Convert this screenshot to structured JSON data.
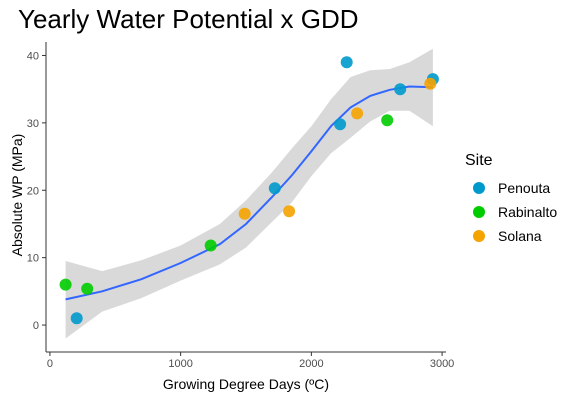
{
  "chart_data": {
    "type": "scatter",
    "title": "Yearly Water Potential x GDD",
    "xlabel": "Growing Degree Days (ºC)",
    "ylabel": "Absolute WP (MPa)",
    "xlim": [
      -30,
      3030
    ],
    "ylim": [
      -4,
      42
    ],
    "x_ticks": [
      0,
      1000,
      2000,
      3000
    ],
    "y_ticks": [
      0,
      10,
      20,
      30,
      40
    ],
    "grid": false,
    "legend": {
      "title": "Site",
      "position": "right"
    },
    "series": [
      {
        "name": "Penouta",
        "color": "#0099CC",
        "points": [
          [
            205,
            1.0
          ],
          [
            1720,
            20.3
          ],
          [
            2220,
            29.8
          ],
          [
            2270,
            39.0
          ],
          [
            2680,
            35.0
          ],
          [
            2930,
            36.5
          ]
        ]
      },
      {
        "name": "Rabinalto",
        "color": "#00CC00",
        "points": [
          [
            120,
            6.0
          ],
          [
            285,
            5.4
          ],
          [
            1230,
            11.8
          ],
          [
            2580,
            30.4
          ]
        ]
      },
      {
        "name": "Solana",
        "color": "#F5A300",
        "points": [
          [
            1490,
            16.5
          ],
          [
            1830,
            16.9
          ],
          [
            2350,
            31.4
          ],
          [
            2910,
            35.8
          ]
        ]
      }
    ],
    "smooth_fit": {
      "color": "#3366FF",
      "band_color": "#BFBFBF",
      "line": [
        [
          120,
          3.8
        ],
        [
          400,
          5.0
        ],
        [
          700,
          6.8
        ],
        [
          1000,
          9.2
        ],
        [
          1300,
          12.0
        ],
        [
          1500,
          15.0
        ],
        [
          1700,
          19.0
        ],
        [
          1850,
          22.2
        ],
        [
          2000,
          25.8
        ],
        [
          2150,
          29.5
        ],
        [
          2300,
          32.3
        ],
        [
          2450,
          34.0
        ],
        [
          2600,
          34.9
        ],
        [
          2750,
          35.4
        ],
        [
          2930,
          35.3
        ]
      ],
      "upper": [
        [
          120,
          9.5
        ],
        [
          400,
          8.0
        ],
        [
          700,
          9.6
        ],
        [
          1000,
          11.8
        ],
        [
          1300,
          15.0
        ],
        [
          1500,
          18.5
        ],
        [
          1700,
          22.7
        ],
        [
          1850,
          26.2
        ],
        [
          2000,
          29.5
        ],
        [
          2150,
          33.5
        ],
        [
          2300,
          36.8
        ],
        [
          2450,
          37.8
        ],
        [
          2600,
          38.0
        ],
        [
          2750,
          39.0
        ],
        [
          2930,
          41.0
        ]
      ],
      "lower": [
        [
          120,
          -2.0
        ],
        [
          400,
          2.0
        ],
        [
          700,
          4.0
        ],
        [
          1000,
          6.6
        ],
        [
          1300,
          9.0
        ],
        [
          1500,
          11.5
        ],
        [
          1700,
          15.3
        ],
        [
          1850,
          18.2
        ],
        [
          2000,
          22.1
        ],
        [
          2150,
          25.5
        ],
        [
          2300,
          27.8
        ],
        [
          2450,
          30.2
        ],
        [
          2600,
          31.8
        ],
        [
          2750,
          31.8
        ],
        [
          2930,
          29.5
        ]
      ]
    }
  }
}
